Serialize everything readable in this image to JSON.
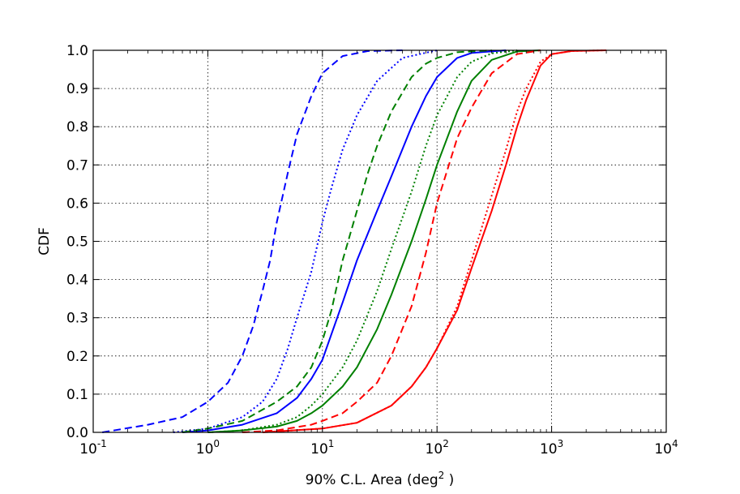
{
  "chart_data": {
    "type": "line",
    "title": "",
    "xlabel": "90% C.L. Area (deg",
    "xlabel_sup": "2",
    "xlabel_end": " )",
    "ylabel": "CDF",
    "xscale": "log",
    "xlim": [
      0.1,
      10000
    ],
    "ylim": [
      0.0,
      1.0
    ],
    "grid": true,
    "legend": "none",
    "xticks": [
      {
        "value": 0.1,
        "base": "10",
        "exp": "-1"
      },
      {
        "value": 1,
        "base": "10",
        "exp": "0"
      },
      {
        "value": 10,
        "base": "10",
        "exp": "1"
      },
      {
        "value": 100,
        "base": "10",
        "exp": "2"
      },
      {
        "value": 1000,
        "base": "10",
        "exp": "3"
      },
      {
        "value": 10000,
        "base": "10",
        "exp": "4"
      }
    ],
    "yticks": [
      {
        "value": 0.0,
        "label": "0.0"
      },
      {
        "value": 0.1,
        "label": "0.1"
      },
      {
        "value": 0.2,
        "label": "0.2"
      },
      {
        "value": 0.3,
        "label": "0.3"
      },
      {
        "value": 0.4,
        "label": "0.4"
      },
      {
        "value": 0.5,
        "label": "0.5"
      },
      {
        "value": 0.6,
        "label": "0.6"
      },
      {
        "value": 0.7,
        "label": "0.7"
      },
      {
        "value": 0.8,
        "label": "0.8"
      },
      {
        "value": 0.9,
        "label": "0.9"
      },
      {
        "value": 1.0,
        "label": "1.0"
      }
    ],
    "series": [
      {
        "name": "blue-dashed",
        "color": "#0000ff",
        "style": "dashed",
        "x": [
          0.12,
          0.3,
          0.6,
          1.0,
          1.5,
          2.0,
          2.5,
          3.0,
          3.5,
          4.0,
          5.0,
          6.0,
          8.0,
          10,
          15,
          25,
          50
        ],
        "y": [
          0.0,
          0.02,
          0.04,
          0.08,
          0.13,
          0.2,
          0.28,
          0.37,
          0.45,
          0.55,
          0.68,
          0.78,
          0.88,
          0.94,
          0.985,
          0.998,
          1.0
        ]
      },
      {
        "name": "blue-dotted",
        "color": "#0000ff",
        "style": "dotted",
        "x": [
          0.5,
          1.0,
          2.0,
          3.0,
          4.0,
          5.0,
          6.0,
          8.0,
          10,
          12,
          15,
          20,
          30,
          50,
          100
        ],
        "y": [
          0.0,
          0.01,
          0.04,
          0.08,
          0.14,
          0.22,
          0.3,
          0.42,
          0.55,
          0.64,
          0.74,
          0.83,
          0.92,
          0.98,
          1.0
        ]
      },
      {
        "name": "blue-solid",
        "color": "#0000ff",
        "style": "solid",
        "x": [
          0.6,
          1.0,
          2.0,
          4.0,
          6.0,
          8.0,
          10,
          15,
          20,
          30,
          40,
          60,
          80,
          100,
          150,
          200,
          400
        ],
        "y": [
          0.0,
          0.005,
          0.02,
          0.05,
          0.09,
          0.14,
          0.19,
          0.34,
          0.45,
          0.58,
          0.67,
          0.8,
          0.88,
          0.93,
          0.98,
          0.993,
          1.0
        ]
      },
      {
        "name": "green-dashed",
        "color": "#008000",
        "style": "dashed",
        "x": [
          0.6,
          1.0,
          2.0,
          4.0,
          6.0,
          8.0,
          10,
          12,
          15,
          20,
          25,
          30,
          40,
          60,
          80,
          100,
          150,
          300
        ],
        "y": [
          0.0,
          0.01,
          0.03,
          0.08,
          0.12,
          0.17,
          0.24,
          0.32,
          0.45,
          0.58,
          0.68,
          0.75,
          0.84,
          0.93,
          0.965,
          0.98,
          0.995,
          1.0
        ]
      },
      {
        "name": "green-dotted",
        "color": "#008000",
        "style": "dotted",
        "x": [
          1.0,
          2.0,
          4.0,
          6.0,
          8.0,
          10,
          15,
          20,
          30,
          40,
          60,
          80,
          100,
          150,
          200,
          300,
          500
        ],
        "y": [
          0.0,
          0.005,
          0.02,
          0.04,
          0.07,
          0.1,
          0.17,
          0.24,
          0.37,
          0.48,
          0.63,
          0.75,
          0.83,
          0.93,
          0.97,
          0.992,
          1.0
        ]
      },
      {
        "name": "green-solid",
        "color": "#008000",
        "style": "solid",
        "x": [
          1.0,
          2.0,
          4.0,
          6.0,
          8.0,
          10,
          15,
          20,
          30,
          40,
          60,
          80,
          100,
          150,
          200,
          300,
          500,
          800
        ],
        "y": [
          0.0,
          0.005,
          0.015,
          0.03,
          0.05,
          0.07,
          0.12,
          0.17,
          0.27,
          0.36,
          0.5,
          0.61,
          0.7,
          0.84,
          0.92,
          0.975,
          0.997,
          1.0
        ]
      },
      {
        "name": "red-dashed",
        "color": "#ff0000",
        "style": "dashed",
        "x": [
          2.0,
          4.0,
          8.0,
          10,
          15,
          20,
          30,
          40,
          60,
          80,
          100,
          150,
          200,
          300,
          500,
          800
        ],
        "y": [
          0.0,
          0.005,
          0.02,
          0.03,
          0.05,
          0.08,
          0.13,
          0.2,
          0.33,
          0.47,
          0.6,
          0.77,
          0.85,
          0.94,
          0.99,
          1.0
        ]
      },
      {
        "name": "red-dotted",
        "color": "#ff0000",
        "style": "dotted",
        "x": [
          3.0,
          10,
          20,
          40,
          60,
          80,
          100,
          150,
          200,
          300,
          400,
          500,
          600,
          800,
          1000,
          1500,
          3000
        ],
        "y": [
          0.0,
          0.01,
          0.025,
          0.07,
          0.12,
          0.17,
          0.22,
          0.33,
          0.45,
          0.62,
          0.74,
          0.84,
          0.9,
          0.97,
          0.99,
          0.998,
          1.0
        ]
      },
      {
        "name": "red-solid",
        "color": "#ff0000",
        "style": "solid",
        "x": [
          3.0,
          10,
          20,
          40,
          60,
          80,
          100,
          150,
          200,
          300,
          400,
          500,
          600,
          800,
          1000,
          1500,
          3000
        ],
        "y": [
          0.0,
          0.01,
          0.025,
          0.07,
          0.12,
          0.17,
          0.22,
          0.32,
          0.43,
          0.58,
          0.7,
          0.8,
          0.87,
          0.96,
          0.99,
          0.998,
          1.0
        ]
      }
    ]
  }
}
